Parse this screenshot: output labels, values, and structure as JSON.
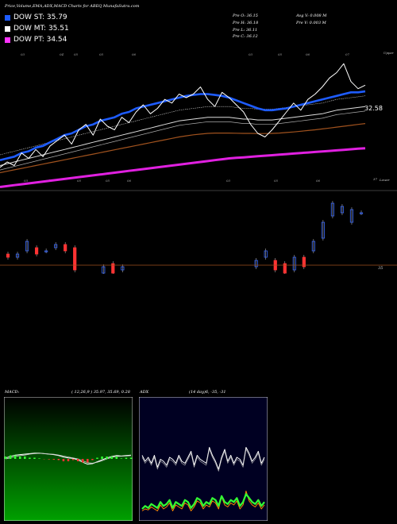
{
  "header": {
    "title": "Price,Volume,EMA,ADX,MACD Charts for ABEQ MunafaSutra.com",
    "stats": [
      [
        "Pre  O: 36.15",
        "Avg V: 0.008  M"
      ],
      [
        "Pre  H: 36.18",
        "Pre  V: 0.003 M"
      ],
      [
        "Pre  L: 36.11",
        ""
      ],
      [
        "Pre  C: 36.12",
        ""
      ]
    ]
  },
  "legend": [
    {
      "label": "DOW ST: 35.79",
      "color": "#1e5cff"
    },
    {
      "label": "DOW MT: 35.51",
      "color": "#ffffff"
    },
    {
      "label": "DOW PT: 34.54",
      "color": "#ff33ff"
    }
  ],
  "colors": {
    "st": "#1e5cff",
    "mt": "#dddddd",
    "pt": "#e020e0",
    "brown": "#a0521e",
    "up": "#3b6bff",
    "down": "#ff3333",
    "adx_bg": "#000022",
    "macd_bg": "#005500"
  },
  "chart_data": [
    {
      "type": "line",
      "name": "price-ema",
      "side_label": "32.58",
      "corner_label": "Upper",
      "top_ticks": [
        "03",
        "04",
        "05",
        "05",
        "06",
        "03",
        "05",
        "06",
        "07"
      ],
      "mid_ticks": [
        "03",
        "04",
        "05",
        "05",
        "06",
        "03",
        "05",
        "06"
      ],
      "ylim": [
        30.5,
        38.5
      ],
      "price": [
        31.8,
        32.1,
        31.9,
        32.6,
        32.3,
        32.8,
        32.4,
        33.0,
        33.3,
        33.6,
        33.1,
        33.9,
        34.2,
        33.6,
        34.5,
        34.1,
        33.9,
        34.6,
        34.3,
        34.9,
        35.3,
        34.8,
        35.1,
        35.6,
        35.4,
        35.9,
        35.7,
        35.9,
        36.3,
        35.6,
        35.2,
        36.0,
        35.7,
        35.3,
        34.9,
        34.2,
        33.7,
        33.5,
        33.9,
        34.4,
        34.9,
        35.4,
        35.0,
        35.6,
        35.9,
        36.3,
        36.8,
        37.1,
        37.6,
        36.6,
        36.2,
        36.4
      ],
      "ema_st": [
        32.2,
        32.3,
        32.4,
        32.6,
        32.7,
        32.9,
        33.0,
        33.2,
        33.4,
        33.6,
        33.7,
        33.9,
        34.1,
        34.2,
        34.4,
        34.5,
        34.6,
        34.8,
        34.9,
        35.1,
        35.2,
        35.3,
        35.4,
        35.5,
        35.6,
        35.7,
        35.8,
        35.85,
        35.9,
        35.9,
        35.85,
        35.8,
        35.7,
        35.55,
        35.4,
        35.25,
        35.1,
        35.0,
        35.0,
        35.05,
        35.1,
        35.2,
        35.3,
        35.4,
        35.5,
        35.6,
        35.7,
        35.8,
        35.9,
        36.0,
        36.0,
        36.05
      ],
      "ema_mt": [
        31.9,
        32.0,
        32.1,
        32.2,
        32.3,
        32.4,
        32.5,
        32.6,
        32.7,
        32.8,
        32.9,
        33.0,
        33.1,
        33.2,
        33.3,
        33.4,
        33.5,
        33.6,
        33.7,
        33.8,
        33.9,
        34.0,
        34.1,
        34.2,
        34.3,
        34.4,
        34.45,
        34.5,
        34.55,
        34.6,
        34.6,
        34.6,
        34.6,
        34.55,
        34.5,
        34.5,
        34.45,
        34.45,
        34.45,
        34.5,
        34.55,
        34.6,
        34.65,
        34.7,
        34.75,
        34.8,
        34.9,
        35.0,
        35.05,
        35.1,
        35.15,
        35.2
      ],
      "ema_pt": [
        30.7,
        30.75,
        30.8,
        30.85,
        30.9,
        30.95,
        31.0,
        31.05,
        31.1,
        31.15,
        31.2,
        31.25,
        31.3,
        31.35,
        31.4,
        31.45,
        31.5,
        31.55,
        31.6,
        31.65,
        31.7,
        31.75,
        31.8,
        31.85,
        31.9,
        31.95,
        32.0,
        32.05,
        32.1,
        32.15,
        32.2,
        32.25,
        32.3,
        32.33,
        32.36,
        32.39,
        32.42,
        32.45,
        32.48,
        32.51,
        32.54,
        32.57,
        32.6,
        32.63,
        32.66,
        32.69,
        32.72,
        32.75,
        32.78,
        32.81,
        32.84,
        32.87
      ],
      "ema_brown": [
        31.5,
        31.58,
        31.66,
        31.74,
        31.82,
        31.9,
        31.98,
        32.06,
        32.14,
        32.22,
        32.3,
        32.38,
        32.46,
        32.54,
        32.62,
        32.7,
        32.78,
        32.86,
        32.94,
        33.02,
        33.1,
        33.18,
        33.26,
        33.34,
        33.42,
        33.5,
        33.56,
        33.62,
        33.66,
        33.7,
        33.72,
        33.72,
        33.72,
        33.71,
        33.7,
        33.7,
        33.69,
        33.69,
        33.7,
        33.72,
        33.75,
        33.78,
        33.82,
        33.86,
        33.9,
        33.95,
        34.0,
        34.05,
        34.1,
        34.15,
        34.2,
        34.25
      ]
    },
    {
      "type": "candlestick",
      "name": "candles",
      "corner_label": "Lower",
      "top_tick": "37",
      "side_label": "35",
      "ylim": [
        33.0,
        36.3
      ],
      "candles": [
        {
          "o": 34.3,
          "c": 34.2
        },
        {
          "o": 34.2,
          "c": 34.3
        },
        {
          "o": 34.4,
          "c": 34.7
        },
        {
          "o": 34.5,
          "c": 34.3
        },
        {
          "o": 34.4,
          "c": 34.4
        },
        {
          "o": 34.5,
          "c": 34.6
        },
        {
          "o": 34.6,
          "c": 34.4
        },
        {
          "o": 34.5,
          "c": 33.8
        },
        {
          "o": 33.4,
          "c": 33.6
        },
        {
          "o": 33.6,
          "c": 33.5
        },
        {
          "o": 33.7,
          "c": 33.9
        },
        {
          "o": 34.0,
          "c": 33.7
        },
        {
          "o": 33.8,
          "c": 33.9
        },
        {
          "o": 33.4,
          "c": 33.4
        },
        {
          "o": 33.5,
          "c": 33.5
        },
        {
          "o": 33.4,
          "c": 33.5
        },
        {
          "o": 33.5,
          "c": 33.4
        },
        {
          "o": 33.1,
          "c": 33.0
        },
        {
          "o": 33.0,
          "c": 33.2
        },
        {
          "o": 32.9,
          "c": 32.8
        },
        {
          "o": 32.8,
          "c": 32.9
        },
        {
          "o": 32.9,
          "c": 32.6
        },
        {
          "o": 32.6,
          "c": 32.8
        },
        {
          "o": 32.8,
          "c": 33.1
        },
        {
          "o": 33.0,
          "c": 33.2
        },
        {
          "o": 33.5,
          "c": 33.6
        },
        {
          "o": 33.9,
          "c": 34.1
        },
        {
          "o": 34.2,
          "c": 34.4
        },
        {
          "o": 34.1,
          "c": 33.8
        },
        {
          "o": 34.0,
          "c": 33.7
        },
        {
          "o": 33.8,
          "c": 34.2
        },
        {
          "o": 34.2,
          "c": 33.9
        },
        {
          "o": 34.4,
          "c": 34.7
        },
        {
          "o": 34.8,
          "c": 35.3
        },
        {
          "o": 35.5,
          "c": 35.9
        },
        {
          "o": 35.6,
          "c": 35.8
        },
        {
          "o": 35.3,
          "c": 35.7
        },
        {
          "o": 35.6,
          "c": 35.6
        }
      ]
    },
    {
      "type": "line",
      "name": "macd",
      "label": "MACD:",
      "params": "( 12,26,9 ) 35.97,  35.69,  0.28",
      "ylim": [
        -3,
        3
      ],
      "line_a": [
        0.1,
        0.25,
        0.4,
        0.45,
        0.5,
        0.55,
        0.6,
        0.6,
        0.55,
        0.5,
        0.45,
        0.35,
        0.2,
        0.1,
        0.05,
        -0.1,
        -0.35,
        -0.55,
        -0.5,
        -0.3,
        -0.1,
        0.1,
        0.25,
        0.35,
        0.3,
        0.35,
        0.4
      ],
      "line_b": [
        0.0,
        0.1,
        0.25,
        0.35,
        0.4,
        0.5,
        0.55,
        0.58,
        0.56,
        0.52,
        0.48,
        0.4,
        0.3,
        0.2,
        0.1,
        0.0,
        -0.2,
        -0.4,
        -0.45,
        -0.35,
        -0.2,
        0.0,
        0.15,
        0.25,
        0.28,
        0.3,
        0.35
      ],
      "hist": [
        0.1,
        0.15,
        0.15,
        0.1,
        0.1,
        0.05,
        0.05,
        0.02,
        -0.01,
        -0.02,
        -0.03,
        -0.05,
        -0.1,
        -0.1,
        -0.05,
        -0.1,
        -0.15,
        -0.15,
        -0.05,
        0.05,
        0.1,
        0.1,
        0.1,
        0.1,
        0.02,
        0.05,
        0.05
      ]
    },
    {
      "type": "line",
      "name": "adx",
      "label": "ADX",
      "params": "(14  day)6,  -35,  -31",
      "ylim": [
        0,
        100
      ],
      "white": [
        66,
        60,
        64,
        58,
        66,
        54,
        62,
        60,
        56,
        64,
        62,
        58,
        66,
        60,
        58,
        64,
        70,
        56,
        66,
        62,
        60,
        58,
        74,
        66,
        60,
        52,
        64,
        72,
        60,
        66,
        58,
        64,
        62,
        56,
        74,
        68,
        60,
        64,
        70,
        58,
        64
      ],
      "green": [
        12,
        15,
        13,
        17,
        15,
        13,
        19,
        15,
        17,
        21,
        13,
        19,
        17,
        15,
        21,
        19,
        13,
        17,
        23,
        21,
        15,
        19,
        17,
        23,
        21,
        15,
        25,
        19,
        17,
        21,
        19,
        23,
        15,
        19,
        27,
        23,
        19,
        17,
        21,
        15,
        19
      ],
      "orange": [
        10,
        12,
        11,
        14,
        12,
        10,
        16,
        12,
        14,
        18,
        10,
        16,
        14,
        12,
        18,
        16,
        10,
        14,
        20,
        18,
        12,
        16,
        14,
        20,
        18,
        12,
        24,
        16,
        14,
        18,
        16,
        20,
        12,
        16,
        30,
        20,
        16,
        14,
        18,
        12,
        16
      ]
    }
  ]
}
